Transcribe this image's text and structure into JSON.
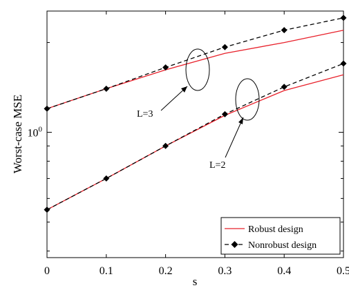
{
  "chart_data": {
    "type": "line",
    "xlabel": "s",
    "ylabel": "Worst-case MSE",
    "yscale": "log",
    "x": [
      0,
      0.1,
      0.2,
      0.3,
      0.4,
      0.5
    ],
    "x_tick_labels": [
      "0",
      "0.1",
      "0.2",
      "0.3",
      "0.4",
      "0.5"
    ],
    "xlim": [
      0,
      0.5
    ],
    "ylim": [
      0.38,
      2.55
    ],
    "y_tick_labels": [
      {
        "base": "10",
        "exp": "0",
        "value": 1.0
      }
    ],
    "series": [
      {
        "name": "Robust design",
        "group": "L=3",
        "color": "#e8202a",
        "dash": "solid",
        "marker": "none",
        "values": [
          1.2,
          1.4,
          1.62,
          1.84,
          2.0,
          2.2
        ]
      },
      {
        "name": "Nonrobust design",
        "group": "L=3",
        "color": "#000000",
        "dash": "dashed",
        "marker": "diamond",
        "values": [
          1.2,
          1.4,
          1.65,
          1.93,
          2.2,
          2.42
        ]
      },
      {
        "name": "Robust design",
        "group": "L=2",
        "color": "#e8202a",
        "dash": "solid",
        "marker": "none",
        "values": [
          0.55,
          0.7,
          0.9,
          1.14,
          1.38,
          1.56
        ]
      },
      {
        "name": "Nonrobust design",
        "group": "L=2",
        "color": "#000000",
        "dash": "dashed",
        "marker": "diamond",
        "values": [
          0.55,
          0.7,
          0.9,
          1.15,
          1.42,
          1.7
        ]
      }
    ],
    "annotations": [
      {
        "text": "L=3"
      },
      {
        "text": "L=2"
      }
    ],
    "legend": {
      "position": "bottom-right",
      "entries": [
        {
          "label": "Robust design",
          "color": "#e8202a",
          "dash": "solid",
          "marker": "none"
        },
        {
          "label": "Nonrobust design",
          "color": "#000000",
          "dash": "dashed",
          "marker": "diamond"
        }
      ]
    },
    "grid": false
  }
}
